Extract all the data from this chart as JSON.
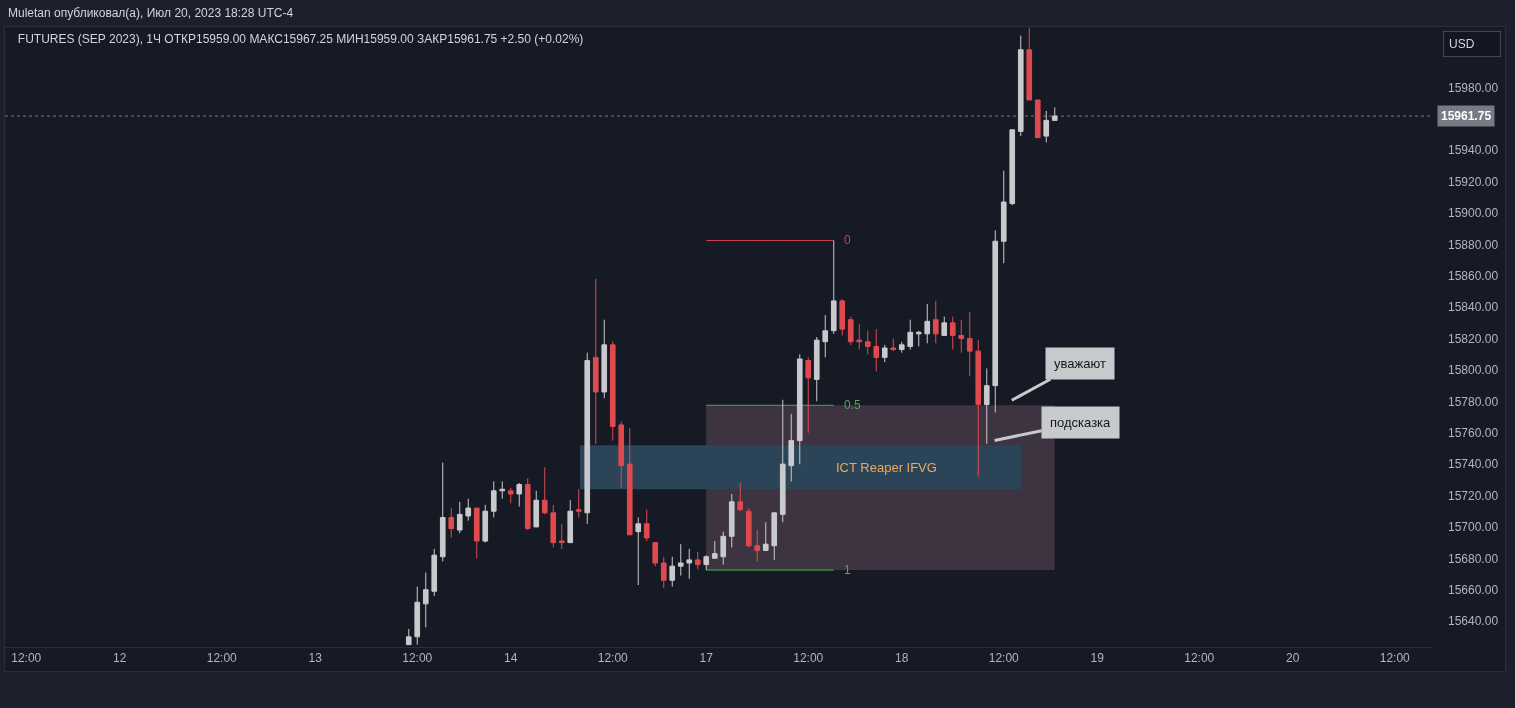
{
  "chart_data": {
    "type": "candlestick",
    "title": "Muletan опубликовал(а), Июл 20, 2023 18:28 UTC-4",
    "subtitle": "FUTURES (SEP 2023), 1Ч ОТКР15959.00 МАКС15967.25 МИН15959.00 ЗАКР15961.75 +2.50 (+0.02%)",
    "ylabel": "USD",
    "categories": [
      null,
      null,
      "12:00",
      null,
      null,
      null,
      null,
      null,
      null,
      null,
      null,
      null,
      null,
      "12",
      null,
      null,
      null,
      null,
      null,
      null,
      null,
      null,
      null,
      null,
      null,
      "12:00",
      null,
      null,
      null,
      null,
      null,
      null,
      null,
      null,
      null,
      null,
      "13",
      null,
      null,
      null,
      null,
      null,
      null,
      null,
      null,
      null,
      null,
      null,
      "12:00",
      null,
      null,
      null,
      null,
      null,
      null,
      null,
      null,
      null,
      null,
      "14",
      null,
      null,
      null,
      null,
      null,
      null,
      null,
      null,
      null,
      null,
      null,
      "12:00",
      null,
      null,
      null,
      null,
      null,
      null,
      null,
      null,
      null,
      null,
      "17",
      null,
      null,
      null,
      null,
      null,
      null,
      null,
      null,
      null,
      null,
      null,
      "12:00",
      null,
      null,
      null,
      null,
      null,
      null,
      null,
      null,
      null,
      null,
      "18",
      null,
      null,
      null,
      null,
      null,
      null,
      null,
      null,
      null,
      null,
      null,
      "12:00",
      null,
      null,
      null,
      null,
      null,
      null,
      null,
      null,
      null,
      null,
      "19",
      null,
      null,
      null,
      null,
      null,
      null,
      null,
      null,
      null,
      null,
      null,
      "12:00",
      null,
      null,
      null,
      null,
      null,
      null,
      null,
      null,
      null,
      null,
      "20",
      null,
      null,
      null,
      null,
      null,
      null,
      null,
      null,
      null,
      null,
      null,
      "12:00",
      null,
      null,
      null,
      null
    ],
    "ohlc": [
      null,
      null,
      null,
      null,
      null,
      null,
      null,
      null,
      null,
      null,
      null,
      null,
      null,
      null,
      null,
      null,
      null,
      null,
      null,
      null,
      null,
      null,
      null,
      null,
      null,
      null,
      null,
      null,
      null,
      null,
      null,
      null,
      null,
      null,
      null,
      null,
      null,
      null,
      null,
      null,
      null,
      null,
      null,
      null,
      null,
      null,
      null,
      [
        15625,
        15635,
        15625,
        15630
      ],
      [
        15630,
        15662,
        15625,
        15652
      ],
      [
        15651,
        15671,
        15636,
        15660
      ],
      [
        15659,
        15686,
        15656,
        15682
      ],
      [
        15681,
        15741,
        15678,
        15706
      ],
      [
        15706,
        15712,
        15693,
        15699
      ],
      [
        15698,
        15716,
        15696,
        15708
      ],
      [
        15707,
        15718,
        15704,
        15712
      ],
      [
        15712,
        15712,
        15680,
        15691
      ],
      [
        15691,
        15714,
        15690,
        15710
      ],
      [
        15710,
        15729,
        15706,
        15723
      ],
      [
        15723,
        15729,
        15718,
        15724
      ],
      [
        15723,
        15725,
        15715,
        15721
      ],
      [
        15721,
        15728,
        15713,
        15727
      ],
      [
        15727,
        15731,
        15698,
        15699
      ],
      [
        15700,
        15723,
        15700,
        15717
      ],
      [
        15717,
        15738,
        15708,
        15709
      ],
      [
        15709,
        15714,
        15687,
        15690
      ],
      [
        15691,
        15702,
        15686,
        15690
      ],
      [
        15690,
        15717,
        15690,
        15710
      ],
      [
        15711,
        15724,
        15706,
        15710
      ],
      [
        15709,
        15811,
        15702,
        15806
      ],
      [
        15808,
        15858,
        15753,
        15786
      ],
      [
        15786,
        15832,
        15782,
        15816
      ],
      [
        15816,
        15818,
        15755,
        15764
      ],
      [
        15765,
        15767,
        15725,
        15739
      ],
      [
        15740,
        15763,
        15695,
        15695
      ],
      [
        15697,
        15706,
        15663,
        15702
      ],
      [
        15702,
        15711,
        15691,
        15693
      ],
      [
        15690,
        15690,
        15675,
        15677
      ],
      [
        15677,
        15681,
        15661,
        15666
      ],
      [
        15666,
        15681,
        15662,
        15675
      ],
      [
        15675,
        15689,
        15669,
        15677
      ],
      [
        15677,
        15686,
        15667,
        15679
      ],
      [
        15679,
        15684,
        15673,
        15676
      ],
      [
        15676,
        15682,
        15672.5,
        15681
      ],
      [
        15680,
        15691,
        15680,
        15683
      ],
      [
        15681,
        15697,
        15676,
        15694
      ],
      [
        15694,
        15721,
        15687,
        15716
      ],
      [
        15716,
        15728,
        15710,
        15711
      ],
      [
        15710,
        15712,
        15687,
        15688
      ],
      [
        15688,
        15698,
        15678,
        15685
      ],
      [
        15685,
        15703,
        15685,
        15689
      ],
      [
        15688,
        15709,
        15679,
        15709
      ],
      [
        15708,
        15781,
        15703,
        15740
      ],
      [
        15739,
        15772,
        15729,
        15755
      ],
      [
        15755,
        15810,
        15740,
        15807
      ],
      [
        15806,
        15808,
        15760,
        15795
      ],
      [
        15794,
        15821,
        15780,
        15819
      ],
      [
        15818,
        15835,
        15808,
        15825
      ],
      [
        15825,
        15882.5,
        15823,
        15844
      ],
      [
        15844,
        15845,
        15822,
        15826
      ],
      [
        15832,
        15834,
        15816,
        15818
      ],
      [
        15819,
        15829,
        15813,
        15818
      ],
      [
        15818,
        15825,
        15810,
        15815
      ],
      [
        15815,
        15826,
        15799,
        15808
      ],
      [
        15808,
        15816,
        15805,
        15814
      ],
      [
        15814,
        15820,
        15812,
        15813
      ],
      [
        15813,
        15818,
        15811,
        15816
      ],
      [
        15815,
        15832,
        15813,
        15824
      ],
      [
        15823,
        15825,
        15815,
        15824
      ],
      [
        15823,
        15842,
        15817,
        15831
      ],
      [
        15832,
        15844,
        15817,
        15823
      ],
      [
        15822,
        15834,
        15822,
        15830
      ],
      [
        15830,
        15834,
        15813,
        15822
      ],
      [
        15822,
        15832,
        15811,
        15820
      ],
      [
        15820,
        15837,
        15796,
        15812
      ],
      [
        15812,
        15819,
        15732,
        15778
      ],
      [
        15778,
        15801,
        15753,
        15790
      ],
      [
        15790,
        15889,
        15773,
        15882
      ],
      [
        15882,
        15927,
        15868,
        15907
      ],
      [
        15906,
        15953,
        15905,
        15953
      ],
      [
        15952,
        16013,
        15949,
        16004
      ],
      [
        16004,
        16018,
        15972,
        15972
      ],
      [
        15972,
        15972,
        15948,
        15948
      ],
      [
        15949,
        15965,
        15945,
        15959
      ],
      [
        15959,
        15967.25,
        15959,
        15961.75
      ],
      null,
      null,
      null,
      null,
      null,
      null,
      null,
      null,
      null,
      null,
      null,
      null,
      null,
      null,
      null,
      null,
      null,
      null,
      null,
      null,
      null,
      null,
      null,
      null,
      null,
      null,
      null,
      null,
      null,
      null,
      null,
      null,
      null,
      null,
      null,
      null,
      null,
      null,
      null,
      null,
      null,
      null,
      null,
      null
    ],
    "colors": [
      null,
      null,
      null,
      null,
      null,
      null,
      null,
      null,
      null,
      null,
      null,
      null,
      null,
      null,
      null,
      null,
      null,
      null,
      null,
      null,
      null,
      null,
      null,
      null,
      null,
      null,
      null,
      null,
      null,
      null,
      null,
      null,
      null,
      null,
      null,
      null,
      null,
      null,
      null,
      null,
      null,
      null,
      null,
      null,
      null,
      null,
      null,
      "#c9cacd",
      "#c9cacd",
      "#c9cacd",
      "#c9cacd",
      "#c9cacd",
      "#e04a4f",
      "#c9cacd",
      "#c9cacd",
      "#e04a4f",
      "#c9cacd",
      "#c9cacd",
      "#c9cacd",
      "#e04a4f",
      "#c9cacd",
      "#e04a4f",
      "#c9cacd",
      "#e04a4f",
      "#e04a4f",
      "#e04a4f",
      "#c9cacd",
      "#e04a4f",
      "#c9cacd",
      "#e04a4f",
      "#c9cacd",
      "#e04a4f",
      "#e04a4f",
      "#e04a4f",
      "#c9cacd",
      "#e04a4f",
      "#e04a4f",
      "#e04a4f",
      "#c9cacd",
      "#c9cacd",
      "#c9cacd",
      "#e04a4f",
      "#c9cacd",
      "#c9cacd",
      "#c9cacd",
      "#c9cacd",
      "#e04a4f",
      "#e04a4f",
      "#e04a4f",
      "#c9cacd",
      "#c9cacd",
      "#c9cacd",
      "#c9cacd",
      "#c9cacd",
      "#e04a4f",
      "#c9cacd",
      "#c9cacd",
      "#c9cacd",
      "#e04a4f",
      "#e04a4f",
      "#e04a4f",
      "#e04a4f",
      "#e04a4f",
      "#c9cacd",
      "#e04a4f",
      "#c9cacd",
      "#c9cacd",
      "#c9cacd",
      "#c9cacd",
      "#e04a4f",
      "#c9cacd",
      "#e04a4f",
      "#e04a4f",
      "#e04a4f",
      "#e04a4f",
      "#c9cacd",
      "#c9cacd",
      "#c9cacd",
      "#c9cacd",
      "#c9cacd",
      "#e04a4f",
      "#e04a4f",
      "#c9cacd",
      "#c9cacd",
      null,
      null,
      null,
      null,
      null,
      null,
      null,
      null,
      null,
      null,
      null,
      null,
      null,
      null,
      null,
      null,
      null,
      null,
      null,
      null,
      null,
      null,
      null,
      null,
      null,
      null,
      null,
      null,
      null,
      null,
      null,
      null,
      null,
      null,
      null,
      null,
      null,
      null,
      null,
      null,
      null,
      null,
      null,
      null
    ],
    "series": [
      {
        "type": "line",
        "name": "0",
        "color": "#d0404f",
        "values": [
          null,
          null,
          null,
          null,
          null,
          null,
          null,
          null,
          null,
          null,
          null,
          null,
          null,
          null,
          null,
          null,
          null,
          null,
          null,
          null,
          null,
          null,
          null,
          null,
          null,
          null,
          null,
          null,
          null,
          null,
          null,
          null,
          null,
          null,
          null,
          null,
          null,
          null,
          null,
          null,
          null,
          null,
          null,
          null,
          null,
          null,
          null,
          null,
          null,
          null,
          null,
          null,
          null,
          null,
          null,
          null,
          null,
          null,
          null,
          null,
          null,
          null,
          null,
          null,
          null,
          null,
          null,
          null,
          null,
          null,
          null,
          null,
          null,
          null,
          null,
          null,
          null,
          null,
          null,
          null,
          null,
          null,
          15882.5,
          15882.5,
          15882.5,
          15882.5,
          15882.5,
          15882.5,
          15882.5,
          15882.5,
          15882.5,
          15882.5,
          15882.5,
          15882.5,
          15882.5,
          15882.5,
          15882.5,
          15882.5,
          null,
          null,
          null,
          null,
          null,
          null,
          null,
          null,
          null,
          null,
          null,
          null,
          null,
          null,
          null,
          null,
          null,
          null,
          null,
          null,
          null,
          null,
          null,
          null,
          null,
          null,
          null,
          null,
          null,
          null,
          null,
          null,
          null,
          null,
          null,
          null,
          null,
          null,
          null,
          null,
          null,
          null,
          null,
          null,
          null,
          null,
          null,
          null,
          null,
          null,
          null,
          null,
          null,
          null,
          null,
          null,
          null,
          null,
          null,
          null,
          null,
          null,
          null,
          null,
          null,
          null,
          null,
          null,
          null,
          null
        ]
      },
      {
        "type": "line",
        "name": "0.5",
        "color": "#55a35a",
        "values": [
          null,
          null,
          null,
          null,
          null,
          null,
          null,
          null,
          null,
          null,
          null,
          null,
          null,
          null,
          null,
          null,
          null,
          null,
          null,
          null,
          null,
          null,
          null,
          null,
          null,
          null,
          null,
          null,
          null,
          null,
          null,
          null,
          null,
          null,
          null,
          null,
          null,
          null,
          null,
          null,
          null,
          null,
          null,
          null,
          null,
          null,
          null,
          null,
          null,
          null,
          null,
          null,
          null,
          null,
          null,
          null,
          null,
          null,
          null,
          null,
          null,
          null,
          null,
          null,
          null,
          null,
          null,
          null,
          null,
          null,
          null,
          null,
          null,
          null,
          null,
          null,
          null,
          null,
          null,
          null,
          null,
          null,
          15777.5,
          15777.5,
          15777.5,
          15777.5,
          15777.5,
          15777.5,
          15777.5,
          15777.5,
          15777.5,
          15777.5,
          15777.5,
          15777.5,
          15777.5,
          15777.5,
          15777.5,
          15777.5,
          null,
          null,
          null,
          null,
          null,
          null,
          null,
          null,
          null,
          null,
          null,
          null,
          null,
          null,
          null,
          null,
          null,
          null,
          null,
          null,
          null,
          null,
          null,
          null,
          null,
          null,
          null,
          null,
          null,
          null,
          null,
          null,
          null,
          null,
          null,
          null,
          null,
          null,
          null,
          null,
          null,
          null,
          null,
          null,
          null,
          null,
          null,
          null,
          null,
          null,
          null,
          null,
          null,
          null,
          null,
          null,
          null,
          null,
          null,
          null,
          null,
          null,
          null,
          null,
          null,
          null,
          null,
          null,
          null,
          null
        ]
      },
      {
        "type": "line",
        "name": "1",
        "color": "#4caf50",
        "values": [
          null,
          null,
          null,
          null,
          null,
          null,
          null,
          null,
          null,
          null,
          null,
          null,
          null,
          null,
          null,
          null,
          null,
          null,
          null,
          null,
          null,
          null,
          null,
          null,
          null,
          null,
          null,
          null,
          null,
          null,
          null,
          null,
          null,
          null,
          null,
          null,
          null,
          null,
          null,
          null,
          null,
          null,
          null,
          null,
          null,
          null,
          null,
          null,
          null,
          null,
          null,
          null,
          null,
          null,
          null,
          null,
          null,
          null,
          null,
          null,
          null,
          null,
          null,
          null,
          null,
          null,
          null,
          null,
          null,
          null,
          null,
          null,
          null,
          null,
          null,
          null,
          null,
          null,
          null,
          null,
          null,
          null,
          15672.5,
          15672.5,
          15672.5,
          15672.5,
          15672.5,
          15672.5,
          15672.5,
          15672.5,
          15672.5,
          15672.5,
          15672.5,
          15672.5,
          15672.5,
          15672.5,
          15672.5,
          15672.5,
          null,
          null,
          null,
          null,
          null,
          null,
          null,
          null,
          null,
          null,
          null,
          null,
          null,
          null,
          null,
          null,
          null,
          null,
          null,
          null,
          null,
          null,
          null,
          null,
          null,
          null,
          null,
          null,
          null,
          null,
          null,
          null,
          null,
          null,
          null,
          null,
          null,
          null,
          null,
          null,
          null,
          null,
          null,
          null,
          null,
          null,
          null,
          null,
          null,
          null,
          null,
          null,
          null,
          null,
          null,
          null,
          null,
          null,
          null,
          null,
          null,
          null,
          null,
          null,
          null,
          null,
          null,
          null,
          null,
          null
        ]
      }
    ],
    "bands": [
      {
        "axis": "y",
        "from": 15672.5,
        "to": 15777.5,
        "color": "#3e3441"
      },
      {
        "axis": "y",
        "from": 15724,
        "to": 15752,
        "label": "ICT Reaper IFVG",
        "color": "#2b4458"
      }
    ],
    "ylim": [
      15623.5,
      16018.5
    ],
    "yticks": [
      {
        "value": 15640,
        "label": "15640.00"
      },
      {
        "value": 15660,
        "label": "15660.00"
      },
      {
        "value": 15680,
        "label": "15680.00"
      },
      {
        "value": 15700,
        "label": "15700.00"
      },
      {
        "value": 15720,
        "label": "15720.00"
      },
      {
        "value": 15740,
        "label": "15740.00"
      },
      {
        "value": 15760,
        "label": "15760.00"
      },
      {
        "value": 15780,
        "label": "15780.00"
      },
      {
        "value": 15800,
        "label": "15800.00"
      },
      {
        "value": 15820,
        "label": "15820.00"
      },
      {
        "value": 15840,
        "label": "15840.00"
      },
      {
        "value": 15860,
        "label": "15860.00"
      },
      {
        "value": 15880,
        "label": "15880.00"
      },
      {
        "value": 15900,
        "label": "15900.00"
      },
      {
        "value": 15920,
        "label": "15920.00"
      },
      {
        "value": 15940,
        "label": "15940.00"
      },
      {
        "value": 15980,
        "label": "15980.00"
      }
    ],
    "ref_lines": [
      {
        "axis": "y",
        "value": 15961.75,
        "label": "15961.75",
        "color": "#787b86",
        "line_style": "dotted"
      }
    ],
    "annotations": [
      "уважают",
      "подсказка"
    ]
  }
}
